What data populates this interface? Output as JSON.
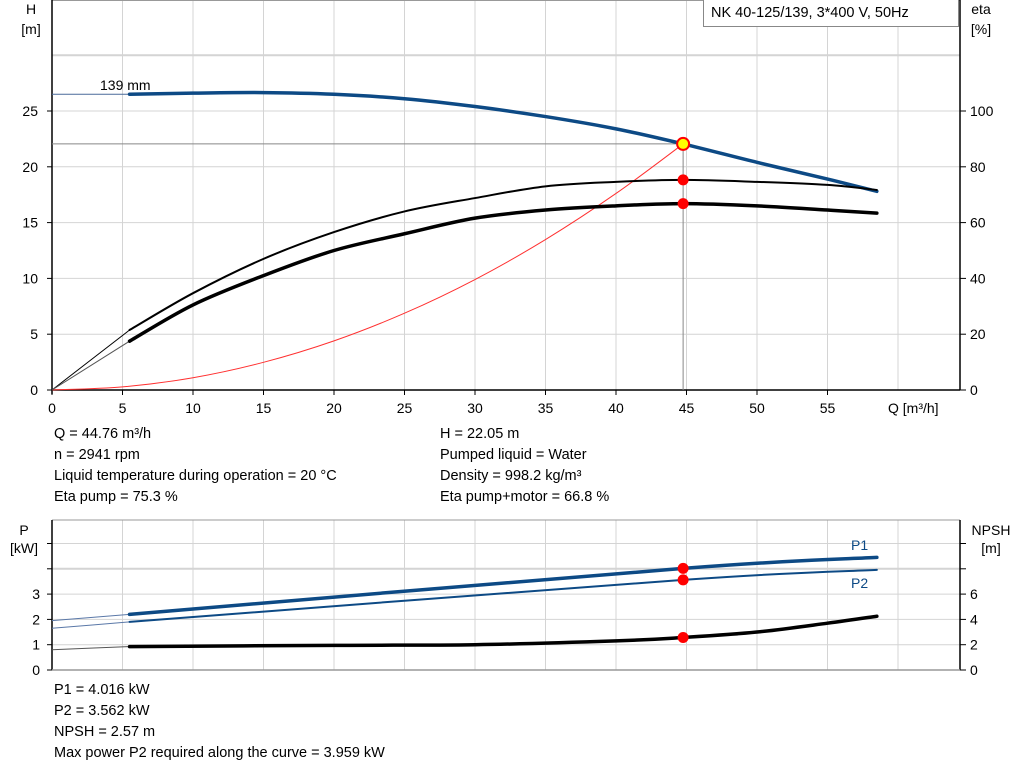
{
  "title": "NK 40-125/139, 3*400 V, 50Hz",
  "operating_info": {
    "left": [
      "Q = 44.76 m³/h",
      "n = 2941 rpm",
      "Liquid temperature during operation = 20 °C",
      "Eta pump = 75.3 %"
    ],
    "right": [
      "H = 22.05 m",
      "Pumped liquid = Water",
      "Density = 998.2 kg/m³",
      "Eta pump+motor = 66.8 %"
    ]
  },
  "power_info": [
    "P1 = 4.016 kW",
    "P2 = 3.562 kW",
    "NPSH = 2.57 m",
    "Max power P2 required along the curve = 3.959 kW"
  ],
  "colors": {
    "head": "#0d4a85",
    "power": "#0d4a85",
    "efficiency": "#000000",
    "system": "#ff3030",
    "point": "#ff0000",
    "duty_point_fill": "#ffff00",
    "grid": "#d4d4d4"
  },
  "chart_data": [
    {
      "type": "line",
      "xlabel": "Q [m³/h]",
      "ylabel_left": [
        "H",
        "[m]"
      ],
      "ylabel_right": [
        "eta",
        "[%]"
      ],
      "xlim": [
        0,
        60
      ],
      "ylim_left": [
        0,
        35
      ],
      "ylim_right": [
        0,
        125
      ],
      "xticks": [
        "0",
        "5",
        "10",
        "15",
        "20",
        "25",
        "30",
        "35",
        "40",
        "45",
        "50",
        "55"
      ],
      "yticks_left": [
        "0",
        "5",
        "10",
        "15",
        "20",
        "25"
      ],
      "yticks_right": [
        "0",
        "20",
        "40",
        "60",
        "80",
        "100"
      ],
      "grid": true,
      "annotation": "139 mm",
      "duty_point": {
        "Q": 44.76,
        "H": 22.05,
        "eta_pump": 75.3,
        "eta_pump_motor": 66.8
      },
      "series": [
        {
          "id": "head",
          "axis": "left",
          "x": [
            0,
            5.5,
            10,
            15,
            20,
            25,
            30,
            35,
            40,
            44.76,
            50,
            55,
            58.5
          ],
          "y": [
            26.5,
            26.5,
            26.6,
            26.65,
            26.5,
            26.1,
            25.4,
            24.5,
            23.4,
            22.05,
            20.4,
            18.9,
            17.8
          ]
        },
        {
          "id": "eta-pump",
          "axis": "right",
          "x": [
            0,
            5.5,
            10,
            15,
            20,
            25,
            30,
            35,
            40,
            44.76,
            50,
            55,
            58.5
          ],
          "y": [
            0,
            21.5,
            34.7,
            47,
            56.6,
            64,
            68.8,
            73,
            74.6,
            75.3,
            74.6,
            73.5,
            71.7
          ]
        },
        {
          "id": "eta-pump-motor",
          "axis": "right",
          "x": [
            0,
            5.5,
            10,
            15,
            20,
            25,
            30,
            35,
            40,
            44.76,
            50,
            55,
            58.5
          ],
          "y": [
            0,
            17.5,
            30.5,
            41,
            50,
            56,
            61.6,
            64.5,
            66,
            66.8,
            66,
            64.5,
            63.4
          ]
        },
        {
          "id": "system-curve",
          "axis": "left",
          "x": [
            0,
            5,
            10,
            15,
            20,
            25,
            30,
            35,
            40,
            44.76
          ],
          "y": [
            0,
            0.28,
            1.1,
            2.48,
            4.4,
            6.88,
            9.9,
            13.48,
            17.61,
            22.05
          ]
        }
      ]
    },
    {
      "type": "line",
      "ylabel_left": [
        "P",
        "[kW]"
      ],
      "ylabel_right": [
        "NPSH",
        "[m]"
      ],
      "xlim": [
        0,
        60
      ],
      "ylim_left": [
        0,
        5.9
      ],
      "ylim_right": [
        0,
        11.8
      ],
      "yticks_left": [
        "0",
        "1",
        "2",
        "3"
      ],
      "yticks_right": [
        "0",
        "2",
        "4",
        "6"
      ],
      "grid": true,
      "series": [
        {
          "id": "P1",
          "name": "P1",
          "axis": "left",
          "x": [
            0,
            5.5,
            44.76,
            58.5
          ],
          "y": [
            1.95,
            2.2,
            4.016,
            4.45
          ]
        },
        {
          "id": "P2",
          "name": "P2",
          "axis": "left",
          "x": [
            0,
            5.5,
            44.76,
            58.5
          ],
          "y": [
            1.65,
            1.9,
            3.562,
            3.959
          ]
        },
        {
          "id": "NPSH",
          "axis": "right",
          "x": [
            0,
            5.5,
            20,
            30,
            40,
            44.76,
            50,
            55,
            58.5
          ],
          "y": [
            1.6,
            1.85,
            1.95,
            2.0,
            2.3,
            2.57,
            3.0,
            3.7,
            4.25
          ]
        }
      ]
    }
  ]
}
